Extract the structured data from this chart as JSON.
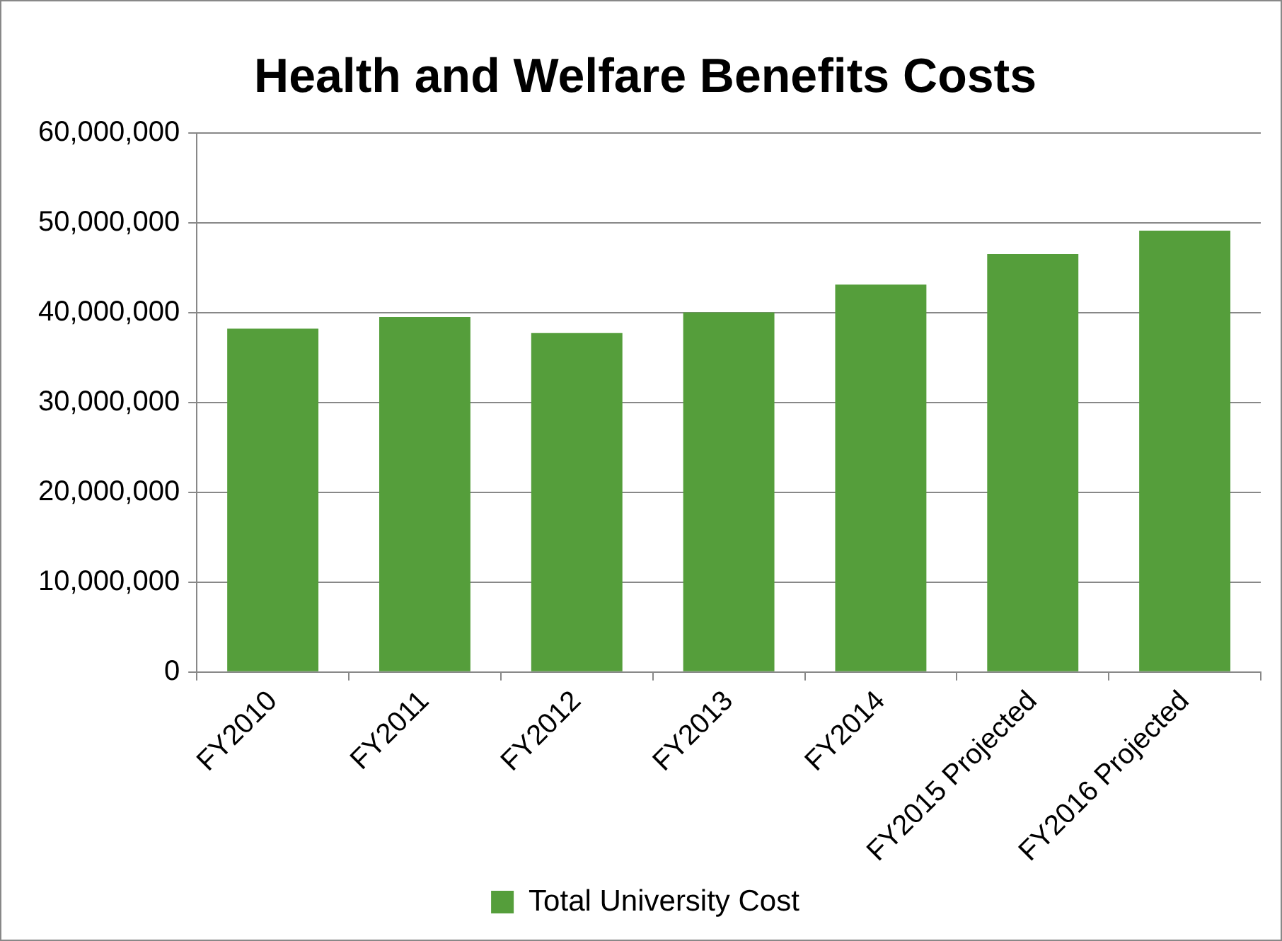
{
  "chart_data": {
    "type": "bar",
    "title": "Health and Welfare Benefits Costs",
    "categories": [
      "FY2010",
      "FY2011",
      "FY2012",
      "FY2013",
      "FY2014",
      "FY2015 Projected",
      "FY2016 Projected"
    ],
    "series": [
      {
        "name": "Total University Cost",
        "color": "#559e3b",
        "values": [
          38200000,
          39500000,
          37700000,
          40000000,
          43100000,
          46500000,
          49100000
        ]
      }
    ],
    "ylim": [
      0,
      60000000
    ],
    "yticks": [
      0,
      {
        "value": 10000000,
        "label": "10,000,000"
      },
      {
        "value": 20000000,
        "label": "20,000,000"
      },
      {
        "value": 30000000,
        "label": "30,000,000"
      },
      {
        "value": 40000000,
        "label": "40,000,000"
      },
      {
        "value": 50000000,
        "label": "50,000,000"
      },
      {
        "value": 60000000,
        "label": "60,000,000"
      }
    ],
    "grid": "y",
    "legend": "bottom"
  }
}
